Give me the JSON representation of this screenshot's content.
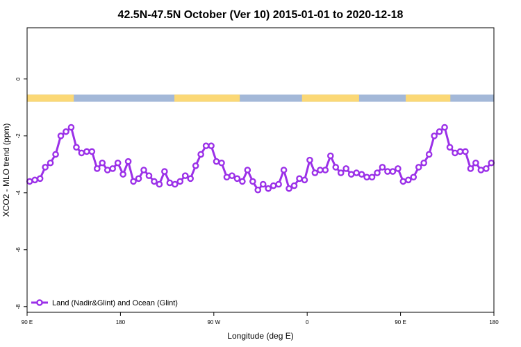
{
  "chart_data": {
    "type": "line",
    "title": "42.5N-47.5N October (Ver 10)   2015-01-01 to 2020-12-18",
    "xlabel": "Longitude (deg E)",
    "ylabel": "XCO2 - MLO trend (ppm)",
    "xlim": [
      90,
      540
    ],
    "ylim": [
      -8.2,
      1.8
    ],
    "x_ticks": [
      {
        "value": 90,
        "label": "90 E"
      },
      {
        "value": 180,
        "label": "180"
      },
      {
        "value": 270,
        "label": "90 W"
      },
      {
        "value": 360,
        "label": "0"
      },
      {
        "value": 450,
        "label": "90 E"
      },
      {
        "value": 540,
        "label": "180"
      }
    ],
    "y_ticks": [
      {
        "value": 0,
        "label": "0"
      },
      {
        "value": -2,
        "label": "-2"
      },
      {
        "value": -4,
        "label": "-4"
      },
      {
        "value": -6,
        "label": "-6"
      },
      {
        "value": -8,
        "label": "-8"
      }
    ],
    "legend": {
      "position": "bottom-left",
      "entries": [
        "Land (Nadir&Glint) and Ocean (Glint)"
      ]
    },
    "surface_band": {
      "y_range": [
        -0.8,
        -0.55
      ],
      "land_color": "#fbd876",
      "ocean_color": "#a3b8d8",
      "land_segments": [
        [
          90,
          135
        ],
        [
          232,
          295
        ],
        [
          355,
          410
        ],
        [
          455,
          498
        ]
      ]
    },
    "series": [
      {
        "name": "Land (Nadir&Glint) and Ocean (Glint)",
        "color": "#9b30e8",
        "x": [
          92.5,
          97.5,
          102.5,
          107.5,
          112.5,
          117.5,
          122.5,
          127.5,
          132.5,
          137.5,
          142.5,
          147.5,
          152.5,
          157.5,
          162.5,
          167.5,
          172.5,
          177.5,
          182.5,
          187.5,
          192.5,
          197.5,
          202.5,
          207.5,
          212.5,
          217.5,
          222.5,
          227.5,
          232.5,
          237.5,
          242.5,
          247.5,
          252.5,
          257.5,
          262.5,
          267.5,
          272.5,
          277.5,
          282.5,
          287.5,
          292.5,
          297.5,
          302.5,
          307.5,
          312.5,
          317.5,
          322.5,
          327.5,
          332.5,
          337.5,
          342.5,
          347.5,
          352.5,
          357.5,
          362.5,
          367.5,
          372.5,
          377.5,
          382.5,
          387.5,
          392.5,
          397.5,
          402.5,
          407.5,
          412.5,
          417.5,
          422.5,
          427.5,
          432.5,
          437.5,
          442.5,
          447.5,
          452.5,
          457.5,
          462.5,
          467.5,
          472.5,
          477.5,
          482.5,
          487.5,
          492.5,
          497.5,
          502.5,
          507.5,
          512.5,
          517.5,
          522.5,
          527.5,
          532.5,
          537.5
        ],
        "y": [
          -3.6,
          -3.55,
          -3.5,
          -3.1,
          -2.95,
          -2.65,
          -2.0,
          -1.85,
          -1.7,
          -2.4,
          -2.6,
          -2.55,
          -2.55,
          -3.15,
          -2.95,
          -3.2,
          -3.15,
          -2.95,
          -3.35,
          -2.9,
          -3.6,
          -3.5,
          -3.2,
          -3.4,
          -3.6,
          -3.7,
          -3.25,
          -3.65,
          -3.7,
          -3.6,
          -3.4,
          -3.5,
          -3.05,
          -2.65,
          -2.35,
          -2.35,
          -2.9,
          -2.95,
          -3.45,
          -3.4,
          -3.5,
          -3.6,
          -3.2,
          -3.6,
          -3.9,
          -3.7,
          -3.85,
          -3.75,
          -3.7,
          -3.2,
          -3.85,
          -3.75,
          -3.5,
          -3.55,
          -2.85,
          -3.3,
          -3.2,
          -3.2,
          -2.7,
          -3.1,
          -3.3,
          -3.15,
          -3.35,
          -3.3,
          -3.35,
          -3.45,
          -3.45,
          -3.3,
          -3.1,
          -3.25,
          -3.25,
          -3.15,
          -3.6,
          -3.55,
          -3.45,
          -3.1,
          -2.95,
          -2.65,
          -2.0,
          -1.85,
          -1.7,
          -2.4,
          -2.6,
          -2.55,
          -2.55,
          -3.15,
          -2.95,
          -3.2,
          -3.15,
          -2.95
        ]
      }
    ]
  }
}
